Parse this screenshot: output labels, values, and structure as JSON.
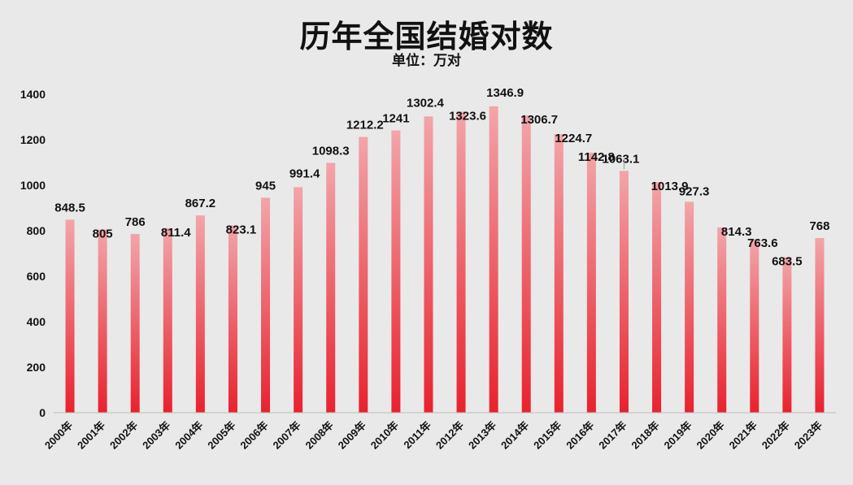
{
  "chart_data": {
    "type": "bar",
    "title": "历年全国结婚对数",
    "subtitle": "单位：万对",
    "xlabel": "",
    "ylabel": "",
    "ylim": [
      0,
      1400
    ],
    "yticks": [
      "0",
      "200",
      "400",
      "600",
      "800",
      "1000",
      "1200",
      "1400"
    ],
    "grid": false,
    "legend": "none",
    "categories": [
      "2000年",
      "2001年",
      "2002年",
      "2003年",
      "2004年",
      "2005年",
      "2006年",
      "2007年",
      "2008年",
      "2009年",
      "2010年",
      "2011年",
      "2012年",
      "2013年",
      "2014年",
      "2015年",
      "2016年",
      "2017年",
      "2018年",
      "2019年",
      "2020年",
      "2021年",
      "2022年",
      "2023年"
    ],
    "values": [
      848.5,
      805,
      786,
      811.4,
      867.2,
      823.1,
      945,
      991.4,
      1098.3,
      1212.2,
      1241,
      1302.4,
      1323.6,
      1346.9,
      1306.7,
      1224.7,
      1142.8,
      1063.1,
      1013.9,
      927.3,
      814.3,
      763.6,
      683.5,
      768
    ],
    "value_labels": [
      "848.5",
      "805",
      "786",
      "811.4",
      "867.2",
      "823.1",
      "945",
      "991.4",
      "1098.3",
      "1212.2",
      "1241",
      "1302.4",
      "1323.6",
      "1346.9",
      "1306.7",
      "1224.7",
      "1142.8",
      "1063.1",
      "1013.9",
      "927.3",
      "814.3",
      "763.6",
      "683.5",
      "768"
    ],
    "colors": {
      "bar_top": "#f2a5aa",
      "bar_bottom": "#e8222e",
      "background": "#e9e9e9",
      "axis": "#bdbdbd",
      "text": "#111111"
    }
  }
}
